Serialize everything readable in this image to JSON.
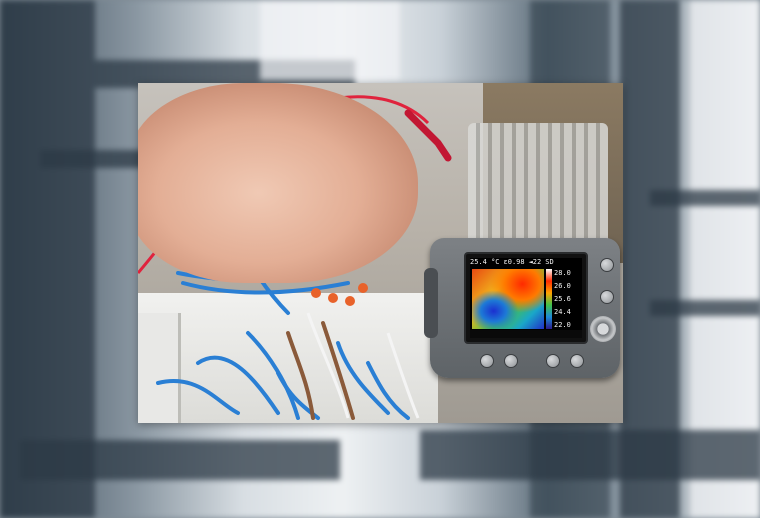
{
  "thermal_screen": {
    "status": [
      "25.4 °C",
      "ε0.98",
      "◄22",
      "SD"
    ],
    "scale_values": [
      "28.0",
      "26.0",
      "25.6",
      "24.4",
      "22.0"
    ]
  },
  "colors": {
    "cable": "#e0233d",
    "wire_blue": "#2a7fd4",
    "device_body": "#6d7175"
  }
}
